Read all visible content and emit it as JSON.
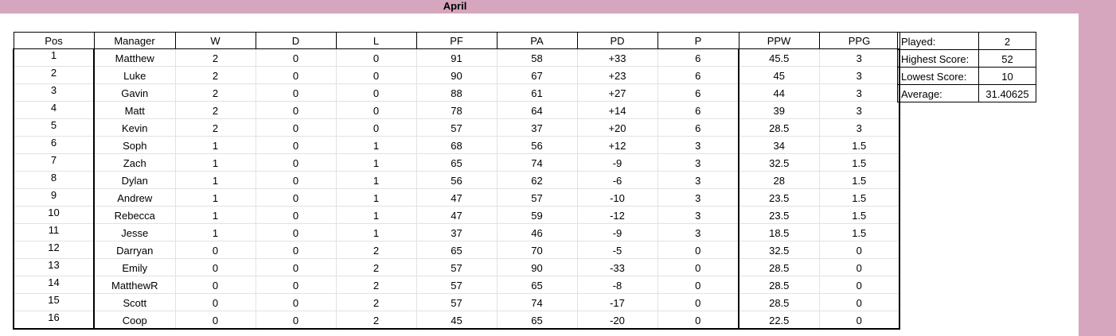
{
  "sheet": {
    "title": "April"
  },
  "league_table": {
    "headers": [
      "Pos",
      "Manager",
      "W",
      "D",
      "L",
      "PF",
      "PA",
      "PD",
      "P",
      "PPW",
      "PPG"
    ],
    "rows": [
      [
        "1",
        "Matthew",
        "2",
        "0",
        "0",
        "91",
        "58",
        "+33",
        "6",
        "45.5",
        "3"
      ],
      [
        "2",
        "Luke",
        "2",
        "0",
        "0",
        "90",
        "67",
        "+23",
        "6",
        "45",
        "3"
      ],
      [
        "3",
        "Gavin",
        "2",
        "0",
        "0",
        "88",
        "61",
        "+27",
        "6",
        "44",
        "3"
      ],
      [
        "4",
        "Matt",
        "2",
        "0",
        "0",
        "78",
        "64",
        "+14",
        "6",
        "39",
        "3"
      ],
      [
        "5",
        "Kevin",
        "2",
        "0",
        "0",
        "57",
        "37",
        "+20",
        "6",
        "28.5",
        "3"
      ],
      [
        "6",
        "Soph",
        "1",
        "0",
        "1",
        "68",
        "56",
        "+12",
        "3",
        "34",
        "1.5"
      ],
      [
        "7",
        "Zach",
        "1",
        "0",
        "1",
        "65",
        "74",
        "-9",
        "3",
        "32.5",
        "1.5"
      ],
      [
        "8",
        "Dylan",
        "1",
        "0",
        "1",
        "56",
        "62",
        "-6",
        "3",
        "28",
        "1.5"
      ],
      [
        "9",
        "Andrew",
        "1",
        "0",
        "1",
        "47",
        "57",
        "-10",
        "3",
        "23.5",
        "1.5"
      ],
      [
        "10",
        "Rebecca",
        "1",
        "0",
        "1",
        "47",
        "59",
        "-12",
        "3",
        "23.5",
        "1.5"
      ],
      [
        "11",
        "Jesse",
        "1",
        "0",
        "1",
        "37",
        "46",
        "-9",
        "3",
        "18.5",
        "1.5"
      ],
      [
        "12",
        "Darryan",
        "0",
        "0",
        "2",
        "65",
        "70",
        "-5",
        "0",
        "32.5",
        "0"
      ],
      [
        "13",
        "Emily",
        "0",
        "0",
        "2",
        "57",
        "90",
        "-33",
        "0",
        "28.5",
        "0"
      ],
      [
        "14",
        "MatthewR",
        "0",
        "0",
        "2",
        "57",
        "65",
        "-8",
        "0",
        "28.5",
        "0"
      ],
      [
        "15",
        "Scott",
        "0",
        "0",
        "2",
        "57",
        "74",
        "-17",
        "0",
        "28.5",
        "0"
      ],
      [
        "16",
        "Coop",
        "0",
        "0",
        "2",
        "45",
        "65",
        "-20",
        "0",
        "22.5",
        "0"
      ]
    ]
  },
  "stats": [
    {
      "label": "Played:",
      "value": "2"
    },
    {
      "label": "Highest Score:",
      "value": "52"
    },
    {
      "label": "Lowest Score:",
      "value": "10"
    },
    {
      "label": "Average:",
      "value": "31.40625"
    }
  ],
  "colors": {
    "band": "#d5a6bd"
  }
}
